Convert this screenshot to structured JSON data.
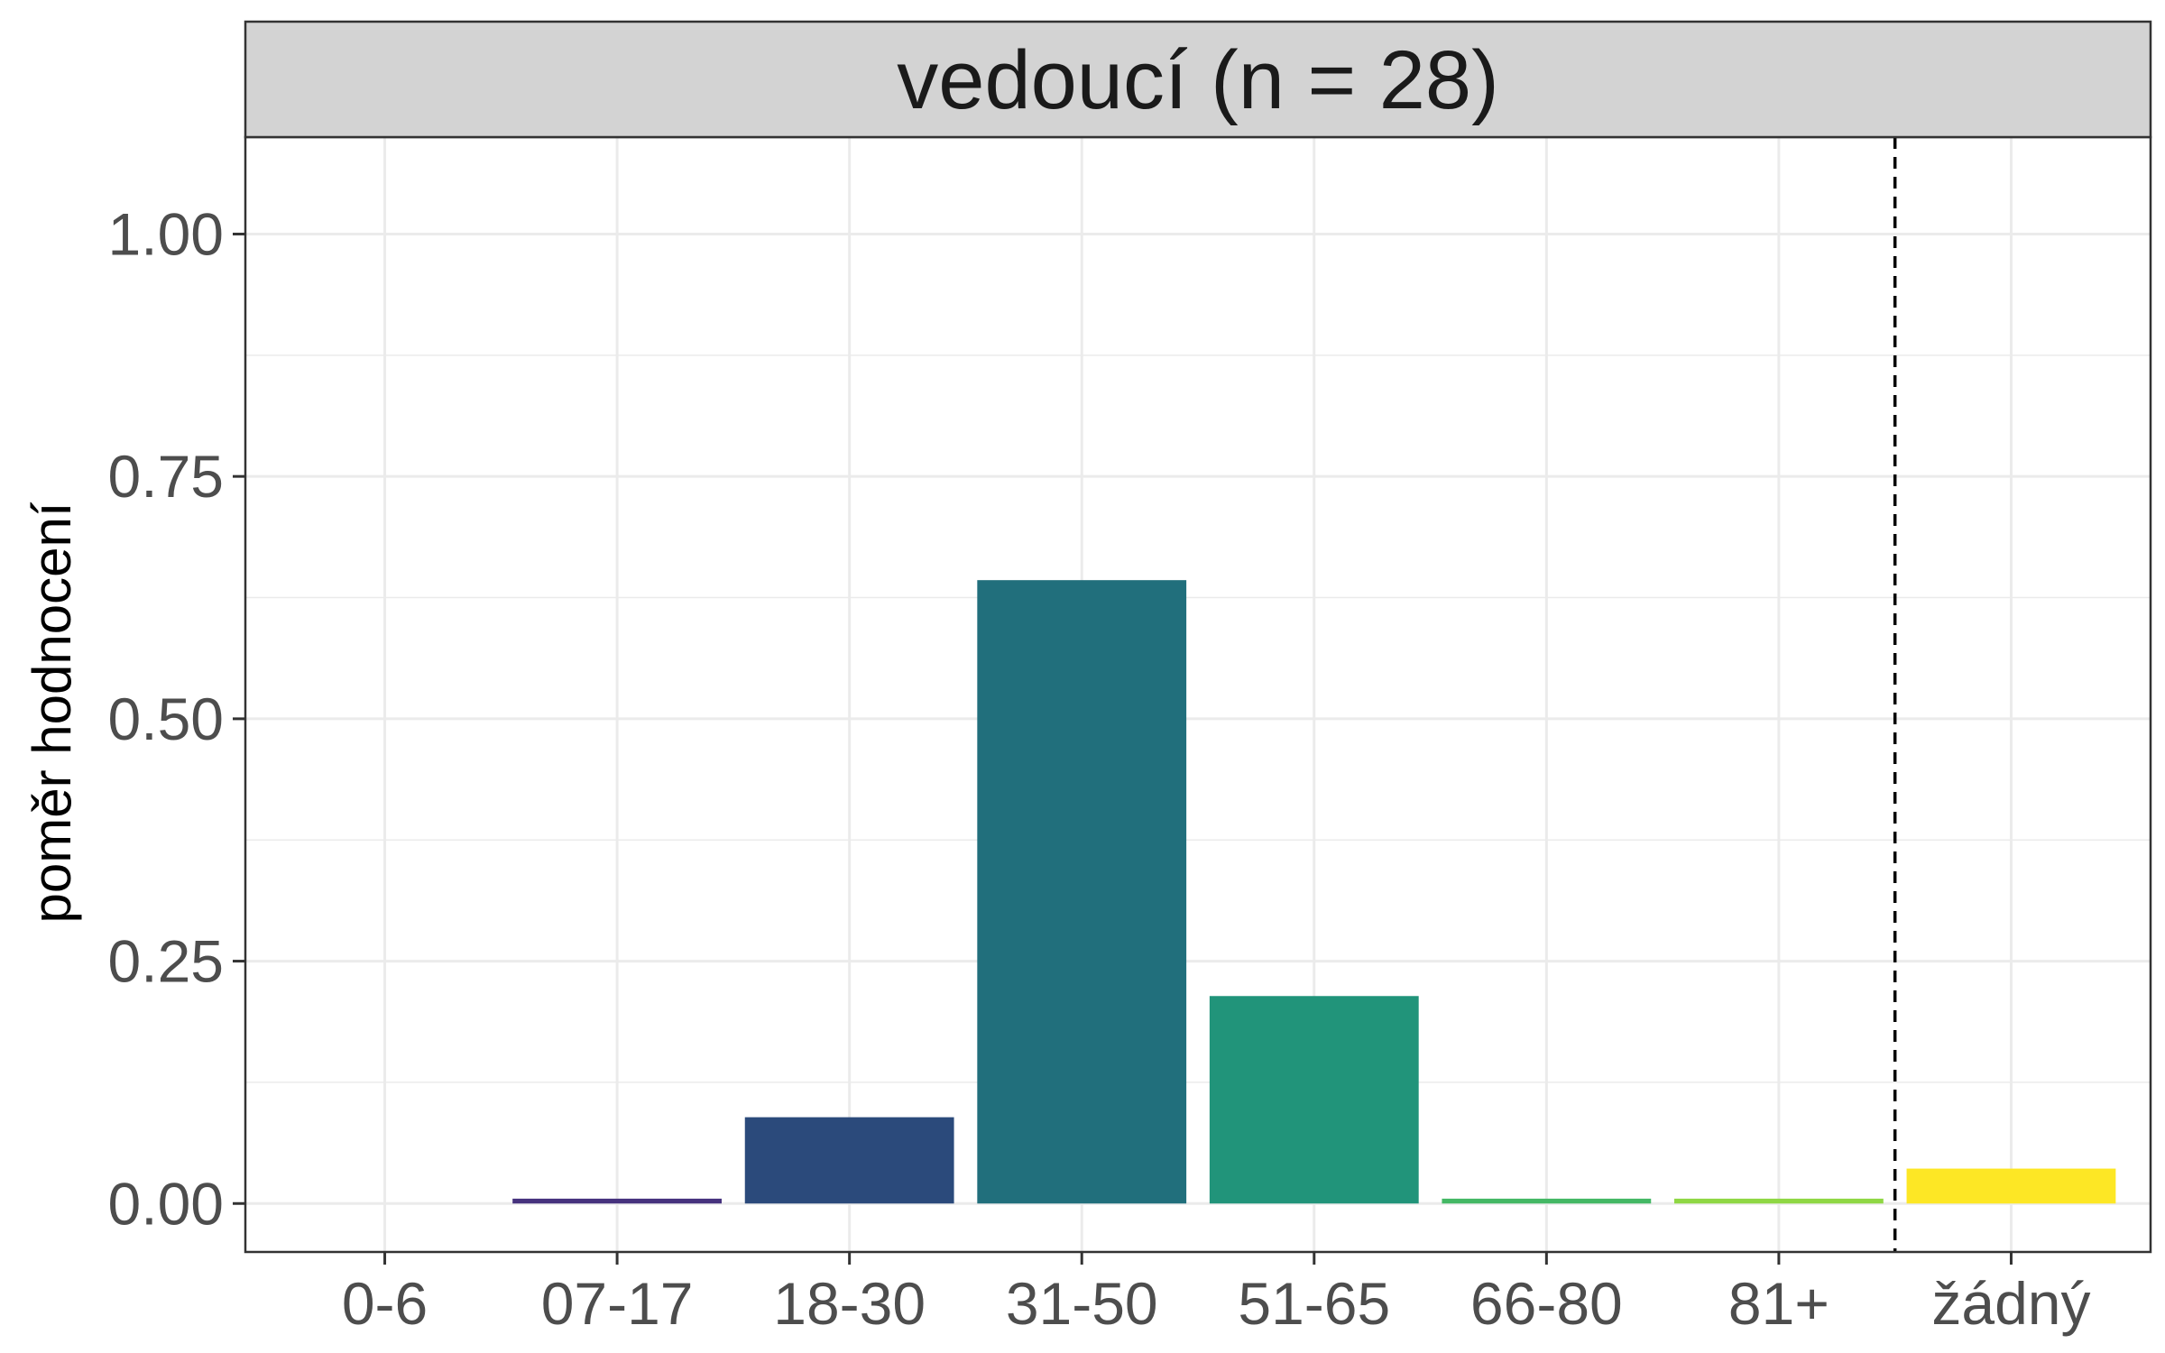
{
  "chart_data": {
    "type": "bar",
    "title": "vedoucí (n = 28)",
    "xlabel": "",
    "ylabel": "poměr hodnocení",
    "categories": [
      "0-6",
      "07-17",
      "18-30",
      "31-50",
      "51-65",
      "66-80",
      "81+",
      "žádný"
    ],
    "values": [
      0.0,
      0.005,
      0.089,
      0.643,
      0.214,
      0.005,
      0.005,
      0.036
    ],
    "ylim": [
      -0.05,
      1.1
    ],
    "yticks": [
      0.0,
      0.25,
      0.5,
      0.75,
      1.0
    ],
    "ytick_labels": [
      "0.00",
      "0.25",
      "0.50",
      "0.75",
      "1.00"
    ],
    "reference_line": {
      "between": [
        "81+",
        "žádný"
      ],
      "style": "dashed"
    },
    "grid": true,
    "colors": [
      "#440154",
      "#46327e",
      "#2b4a7b",
      "#216f7c",
      "#21947a",
      "#44b865",
      "#8fd744",
      "#fde725"
    ]
  }
}
